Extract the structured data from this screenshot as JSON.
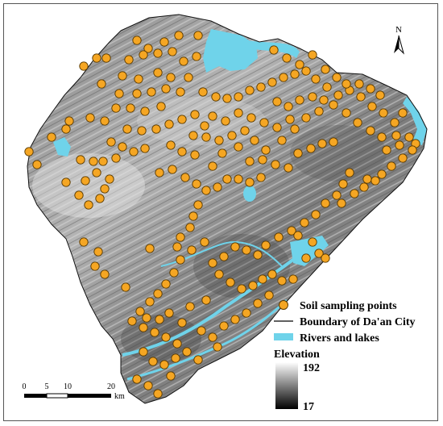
{
  "north": {
    "label": "N",
    "icon": "north-arrow-icon"
  },
  "legend": {
    "points_label": "Soil sampling points",
    "boundary_label": "Boundary of Da'an City",
    "water_label": "Rivers and lakes",
    "elevation_title": "Elevation",
    "elevation_max": "192",
    "elevation_min": "17"
  },
  "scale_bar": {
    "tick_0": "0",
    "tick_5": "5",
    "tick_10": "10",
    "tick_20": "20",
    "unit": "km"
  },
  "colors": {
    "point_fill": "#f5a623",
    "point_stroke": "#5a3a00",
    "water": "#6fd3ea",
    "land_dark": "#5e5e5e",
    "land_light": "#c9c9c9"
  }
}
